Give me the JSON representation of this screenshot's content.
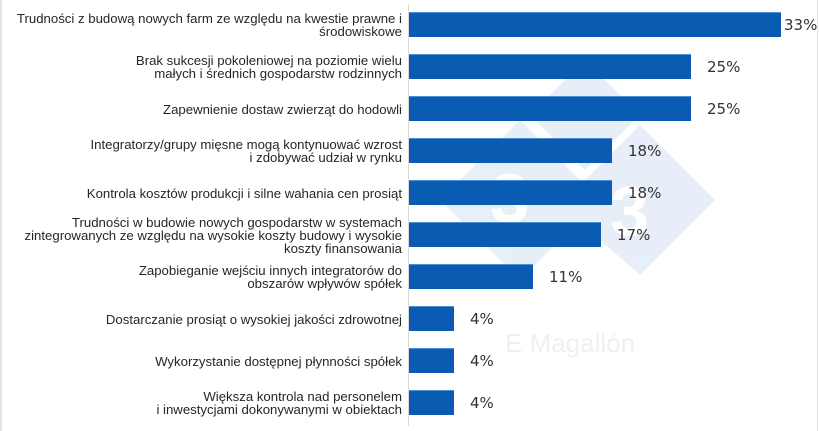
{
  "chart_data": {
    "type": "bar",
    "orientation": "horizontal",
    "title": "",
    "xlabel": "",
    "ylabel": "",
    "xlim": [
      0,
      33
    ],
    "grid": false,
    "legend": null,
    "value_format": "{v}%",
    "bar_color": "#0a5cb3",
    "categories": [
      "Trudności z budową nowych farm ze względu na kwestie prawne i\nśrodowiskowe",
      "Brak sukcesji pokoleniowej na poziomie wielu\nmałych i średnich gospodarstw rodzinnych",
      "Zapewnienie dostaw zwierząt do hodowli",
      "Integratorzy/grupy mięsne mogą kontynuować wzrost\ni zdobywać udział w rynku",
      "Kontrola kosztów produkcji i silne wahania cen prosiąt",
      "Trudności w budowie nowych gospodarstw w systemach\nzintegrowanych ze względu na wysokie koszty budowy i wysokie\nkoszty finansowania",
      "Zapobieganie wejściu innych integratorów do\nobszarów wpływów spółek",
      "Dostarczanie prosiąt o wysokiej jakości zdrowotnej",
      "Wykorzystanie dostępnej płynności spółek",
      "Większa kontrola nad personelem\ni inwestycjami dokonywanymi w obiektach"
    ],
    "values": [
      33,
      25,
      25,
      18,
      18,
      17,
      11,
      4,
      4,
      4
    ],
    "value_labels": [
      "33%",
      "25%",
      "25%",
      "18%",
      "18%",
      "17%",
      "11%",
      "4%",
      "4%",
      "4%"
    ],
    "annotations": [
      "E Magallón"
    ]
  },
  "watermark": {
    "text": "E Magallón",
    "logo_glyph": "3"
  }
}
